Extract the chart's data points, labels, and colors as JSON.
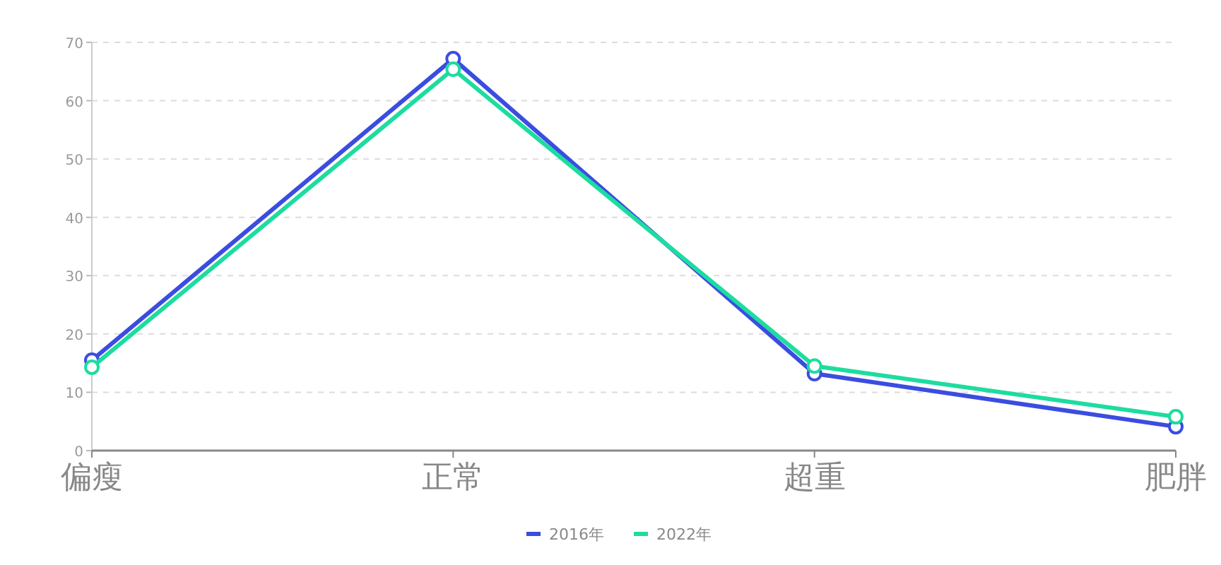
{
  "chart_data": {
    "type": "line",
    "categories": [
      "偏瘦",
      "正常",
      "超重",
      "肥胖"
    ],
    "series": [
      {
        "name": "2016年",
        "color": "#3b4de0",
        "values": [
          15.5,
          67.2,
          13.2,
          4.1
        ]
      },
      {
        "name": "2022年",
        "color": "#1ddca0",
        "values": [
          14.3,
          65.4,
          14.5,
          5.8
        ]
      }
    ],
    "ylim": [
      0,
      70
    ],
    "yticks": [
      0,
      10,
      20,
      30,
      40,
      50,
      60,
      70
    ],
    "grid": "y",
    "legend": "bottom",
    "marker": "circle",
    "line_style": "solid"
  }
}
